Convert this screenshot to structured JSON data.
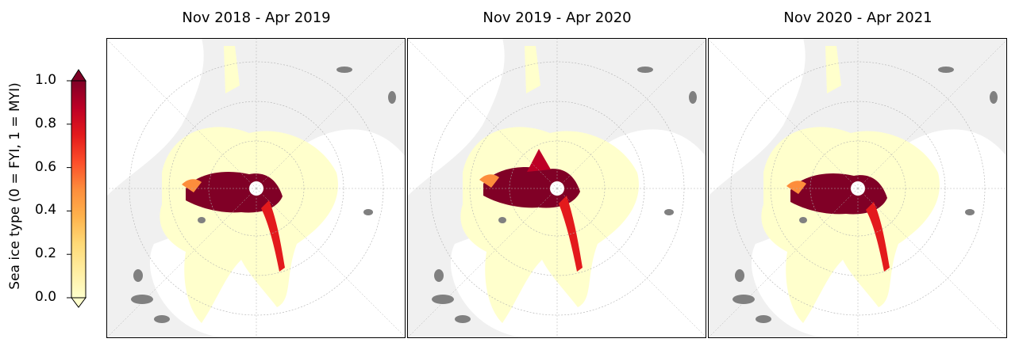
{
  "panels": [
    {
      "title": "Nov 2018 - Apr 2019"
    },
    {
      "title": "Nov 2019 - Apr 2020"
    },
    {
      "title": "Nov 2020 - Apr 2021"
    }
  ],
  "colorbar": {
    "label": "Sea ice type (0 = FYI, 1 = MYI)",
    "ticks": [
      "1.0",
      "0.8",
      "0.6",
      "0.4",
      "0.2",
      "0.0"
    ],
    "colormap": [
      "#ffffcc",
      "#ffeda0",
      "#fed976",
      "#feb24c",
      "#fd8d3c",
      "#fc4e2a",
      "#e31a1c",
      "#bd0026",
      "#800026"
    ]
  },
  "chart_data": [
    {
      "type": "heatmap",
      "title": "Nov 2018 - Apr 2019",
      "value_range": [
        0,
        1
      ],
      "colorbar_label": "Sea ice type (0 = FYI, 1 = MYI)"
    },
    {
      "type": "heatmap",
      "title": "Nov 2019 - Apr 2020",
      "value_range": [
        0,
        1
      ],
      "colorbar_label": "Sea ice type (0 = FYI, 1 = MYI)"
    },
    {
      "type": "heatmap",
      "title": "Nov 2020 - Apr 2021",
      "value_range": [
        0,
        1
      ],
      "colorbar_label": "Sea ice type (0 = FYI, 1 = MYI)"
    }
  ]
}
